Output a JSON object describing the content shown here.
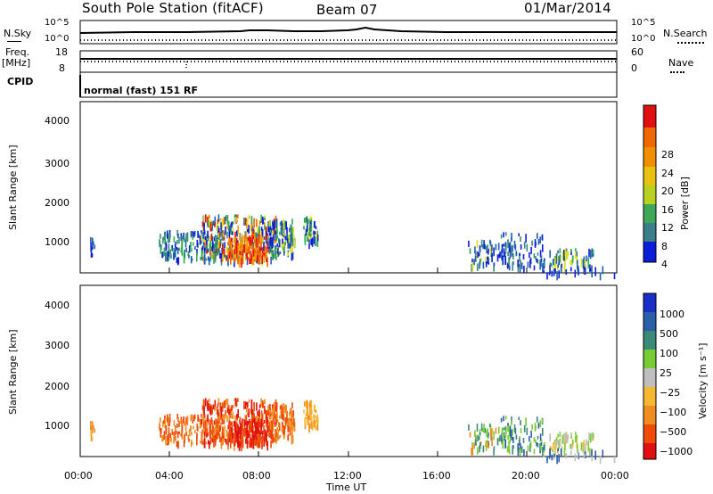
{
  "header": {
    "station": "South Pole Station (fitACF)",
    "beam": "Beam 07",
    "date": "01/Mar/2014"
  },
  "noise_panel": {
    "left_label": "N.Sky",
    "right_label": "N.Search",
    "left_ticks": [
      "10^5",
      "10^0"
    ],
    "right_ticks": [
      "10^5",
      "10^0"
    ]
  },
  "freq_panel": {
    "left_label_top": "Freq.",
    "left_label_bottom": "[MHz]",
    "right_label": "Nave",
    "left_ticks": [
      "18",
      "8"
    ],
    "right_ticks": [
      "60",
      "0"
    ]
  },
  "cpid_panel": {
    "label": "CPID",
    "program": "normal (fast) 151 RF"
  },
  "x_axis": {
    "label": "Time UT",
    "ticks": [
      "00:00",
      "04:00",
      "08:00",
      "12:00",
      "16:00",
      "20:00",
      "00:00"
    ]
  },
  "colors": {
    "power_scale": [
      "#0a1ed8",
      "#1f5fb0",
      "#3a8a7a",
      "#2fb04a",
      "#d8e01a",
      "#f0a000",
      "#f06800",
      "#e01010"
    ],
    "velocity_scale": [
      "#e01010",
      "#ee4a0a",
      "#f08c20",
      "#f5b830",
      "#bfbfbf",
      "#77cc33",
      "#3a8a7a",
      "#2a5fa8",
      "#1a2fc8"
    ]
  },
  "chart_data": [
    {
      "type": "heatmap",
      "name": "power",
      "ylabel": "Slant Range [km]",
      "y_ticks": [
        "4000",
        "3000",
        "2000",
        "1000"
      ],
      "ylim": [
        200,
        4500
      ],
      "xlim": [
        "00:00",
        "24:00"
      ],
      "colorbar_label": "Power [dB]",
      "colorbar_ticks": [
        "28",
        "24",
        "20",
        "16",
        "12",
        "8",
        "4"
      ],
      "clim": [
        0,
        30
      ]
    },
    {
      "type": "heatmap",
      "name": "velocity",
      "ylabel": "Slant Range [km]",
      "y_ticks": [
        "4000",
        "3000",
        "2000",
        "1000"
      ],
      "ylim": [
        200,
        4500
      ],
      "xlim": [
        "00:00",
        "24:00"
      ],
      "colorbar_label": "Velocity [m s⁻¹]",
      "colorbar_ticks": [
        "1000",
        "500",
        "100",
        "25",
        "−25",
        "−100",
        "−500",
        "−1000"
      ],
      "clim": [
        -1000,
        1000
      ]
    }
  ]
}
